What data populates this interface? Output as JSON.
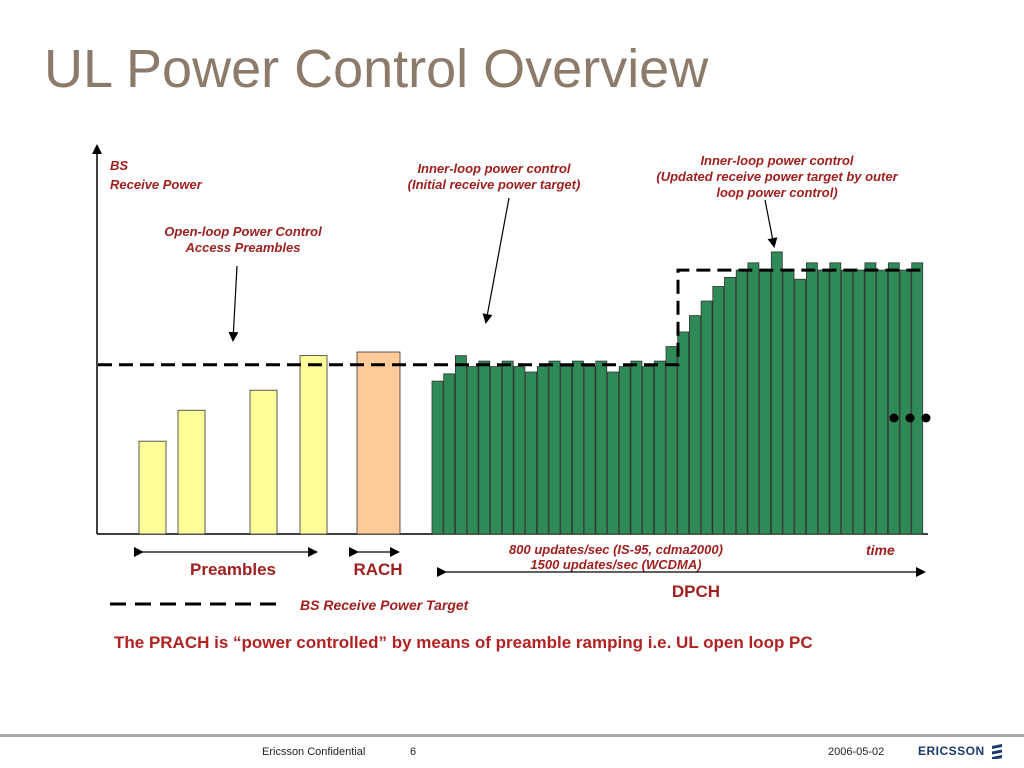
{
  "slide": {
    "title": "UL Power Control Overview"
  },
  "diagram": {
    "y_axis_label_line1": "BS",
    "y_axis_label_line2": "Receive Power",
    "time_label": "time",
    "callout_open_loop_line1": "Open-loop Power Control",
    "callout_open_loop_line2": "Access Preambles",
    "callout_inner_initial_line1": "Inner-loop power control",
    "callout_inner_initial_line2": "(Initial receive power target)",
    "callout_inner_updated_line1": "Inner-loop power control",
    "callout_inner_updated_line2": "(Updated receive power target by outer",
    "callout_inner_updated_line3": "loop power control)",
    "span_preambles": "Preambles",
    "span_rach": "RACH",
    "span_dpch": "DPCH",
    "updates_line1": "800 updates/sec (IS-95, cdma2000)",
    "updates_line2": "1500 updates/sec (WCDMA)",
    "legend_target": "BS Receive Power Target",
    "note": "The PRACH is “power controlled” by means of preamble ramping i.e. UL open loop PC",
    "colors": {
      "preamble": "#ffff99",
      "rach": "#ffcc99",
      "dpch": "#2e8b57",
      "text": "#a02020",
      "title": "#8c7b6b"
    },
    "preamble_levels": [
      0.51,
      0.68,
      0.79,
      0.98
    ],
    "rach_level": 1.0,
    "dpch_levels": [
      0.84,
      0.88,
      0.98,
      0.92,
      0.95,
      0.92,
      0.95,
      0.92,
      0.89,
      0.92,
      0.95,
      0.92,
      0.95,
      0.92,
      0.95,
      0.89,
      0.92,
      0.95,
      0.92,
      0.95,
      1.03,
      1.11,
      1.2,
      1.28,
      1.36,
      1.41,
      1.45,
      1.49,
      1.45,
      1.55,
      1.45,
      1.4,
      1.49,
      1.45,
      1.49,
      1.45,
      1.45,
      1.49,
      1.45,
      1.49,
      1.45,
      1.49
    ],
    "target_levels": {
      "initial": 0.93,
      "updated": 1.45
    }
  },
  "footer": {
    "confidential": "Ericsson Confidential",
    "page": "6",
    "date": "2006-05-02",
    "logo_text": "ERICSSON"
  }
}
